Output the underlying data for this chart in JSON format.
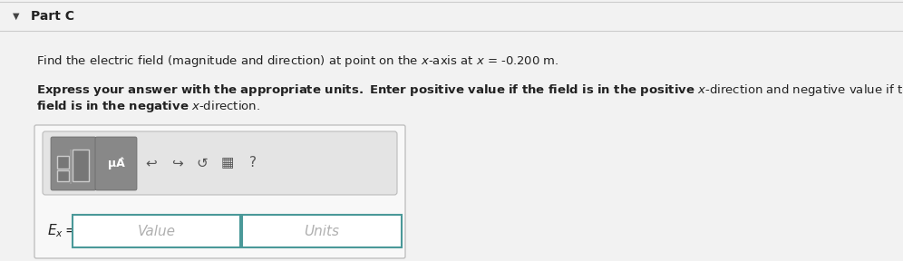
{
  "bg_color": "#f2f2f2",
  "white": "#ffffff",
  "part_label": "Part C",
  "font_color": "#222222",
  "gray_text": "#aaaaaa",
  "divider_color": "#cccccc",
  "toolbar_bg": "#e0e0e0",
  "toolbar_border": "#bbbbbb",
  "btn_bg": "#888888",
  "btn_border": "#666666",
  "icon_color": "#555555",
  "input_border": "#4a9999",
  "line1_pre": "Find the electric field (magnitude and direction) at point on the ",
  "line1_x1": "x",
  "line1_mid": "-axis at ",
  "line1_x2": "x",
  "line1_post": " = -0.200 m.",
  "bold_pre1": "Express your answer with the appropriate units. Enter positive value if the field is in the positive ",
  "bold_x1": "x",
  "bold_post1": "-direction and negative value if the",
  "bold_pre2": "field is in the negative ",
  "bold_x2": "x",
  "bold_post2": "-direction.",
  "value_text": "Value",
  "units_text": "Units",
  "mu_text": "μÂ",
  "icons": [
    "↩",
    "↪",
    "↻",
    "≣",
    "?"
  ]
}
